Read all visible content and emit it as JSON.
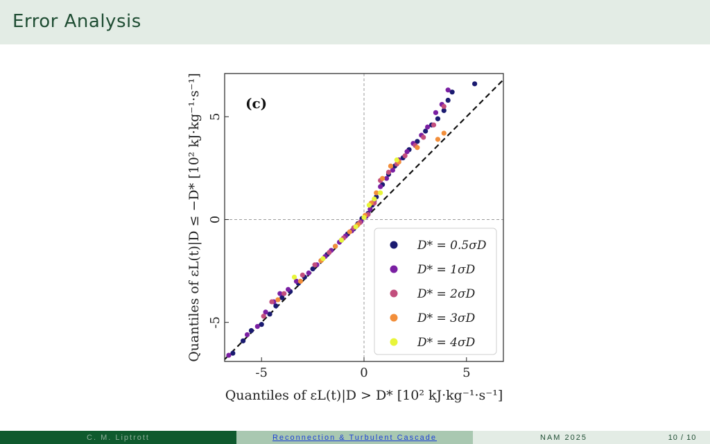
{
  "header": {
    "title": "Error Analysis"
  },
  "footer": {
    "author": "C. M. Liptrott",
    "talk_title": "Reconnection & Turbulent Cascade",
    "conference": "NAM 2025",
    "page": "10 / 10"
  },
  "chart_data": {
    "type": "scatter",
    "panel_label": "(c)",
    "xlabel": "Quantiles of εL(t)|D > D* [10² kJ·kg⁻¹·s⁻¹]",
    "ylabel": "Quantiles of εL(t)|D ≤ −D* [10² kJ·kg⁻¹·s⁻¹]",
    "xlim": [
      -6.8,
      6.8
    ],
    "ylim": [
      -6.9,
      7.1
    ],
    "xticks": [
      -5,
      0,
      5
    ],
    "yticks": [
      -5,
      0,
      5
    ],
    "xtick_labels": [
      "-5",
      "0",
      "5"
    ],
    "ytick_labels": [
      "-5",
      "0",
      "5"
    ],
    "legend_position": "bottom-right",
    "reference_line": "y = x",
    "series": [
      {
        "name": "D* = 0.5σD",
        "color": "#1a1a70",
        "x": [
          -6.4,
          -5.9,
          -5.5,
          -5.0,
          -4.6,
          -4.3,
          -4.0,
          -3.6,
          -3.2,
          -2.9,
          -2.5,
          -2.1,
          -1.8,
          -1.4,
          -1.1,
          -0.8,
          -0.5,
          -0.3,
          -0.1,
          0.2,
          0.4,
          0.6,
          0.9,
          1.2,
          1.5,
          1.9,
          2.2,
          2.6,
          3.0,
          3.3,
          3.6,
          3.9,
          4.1,
          4.3,
          5.4
        ],
        "y": [
          -6.5,
          -5.9,
          -5.4,
          -5.1,
          -4.6,
          -4.2,
          -3.8,
          -3.5,
          -3.1,
          -2.8,
          -2.4,
          -2.0,
          -1.7,
          -1.3,
          -1.0,
          -0.7,
          -0.45,
          -0.2,
          0.05,
          0.3,
          0.7,
          1.1,
          1.7,
          2.2,
          2.6,
          3.0,
          3.4,
          3.8,
          4.3,
          4.6,
          4.9,
          5.3,
          5.8,
          6.2,
          6.6
        ]
      },
      {
        "name": "D* = 1σD",
        "color": "#7a1fa2",
        "x": [
          -6.6,
          -5.7,
          -5.2,
          -4.8,
          -4.4,
          -4.1,
          -3.7,
          -3.3,
          -2.7,
          -2.3,
          -1.9,
          -1.6,
          -1.2,
          -0.9,
          -0.6,
          -0.35,
          -0.15,
          0.1,
          0.3,
          0.5,
          0.8,
          1.1,
          1.4,
          1.7,
          2.1,
          2.4,
          2.8,
          3.1,
          3.5,
          3.8,
          4.1
        ],
        "y": [
          -6.6,
          -5.6,
          -5.2,
          -4.5,
          -4.0,
          -3.6,
          -3.4,
          -3.0,
          -2.6,
          -2.2,
          -1.8,
          -1.5,
          -1.1,
          -0.8,
          -0.55,
          -0.3,
          -0.1,
          0.15,
          0.5,
          0.9,
          1.6,
          2.0,
          2.4,
          2.9,
          3.3,
          3.7,
          4.1,
          4.5,
          5.2,
          5.6,
          6.3
        ]
      },
      {
        "name": "D* = 2σD",
        "color": "#c24e7d",
        "x": [
          -4.9,
          -4.5,
          -3.9,
          -3.0,
          -2.4,
          -1.7,
          -1.0,
          -0.5,
          -0.2,
          0.2,
          0.5,
          0.8,
          1.2,
          1.6,
          2.0,
          2.5,
          2.9,
          3.4,
          3.9
        ],
        "y": [
          -4.7,
          -4.0,
          -3.6,
          -2.7,
          -2.2,
          -1.6,
          -0.9,
          -0.4,
          -0.15,
          0.25,
          0.8,
          1.9,
          2.3,
          2.7,
          3.1,
          3.6,
          4.0,
          4.6,
          5.5
        ]
      },
      {
        "name": "D* = 3σD",
        "color": "#f28e3a",
        "x": [
          -4.2,
          -3.1,
          -2.1,
          -1.4,
          -0.7,
          -0.3,
          0.05,
          0.35,
          0.6,
          0.9,
          1.3,
          1.7,
          2.6,
          3.6,
          3.9
        ],
        "y": [
          -3.9,
          -3.0,
          -2.0,
          -1.3,
          -0.6,
          -0.25,
          0.2,
          0.8,
          1.3,
          2.0,
          2.6,
          2.8,
          3.5,
          3.9,
          4.2
        ]
      },
      {
        "name": "D* = 4σD",
        "color": "#e8f53a",
        "x": [
          -3.4,
          -2.0,
          -1.1,
          -0.4,
          0.0,
          0.25,
          0.5,
          0.8,
          1.6
        ],
        "y": [
          -2.8,
          -1.9,
          -1.0,
          -0.35,
          0.1,
          0.7,
          1.0,
          1.3,
          2.9
        ]
      }
    ]
  }
}
